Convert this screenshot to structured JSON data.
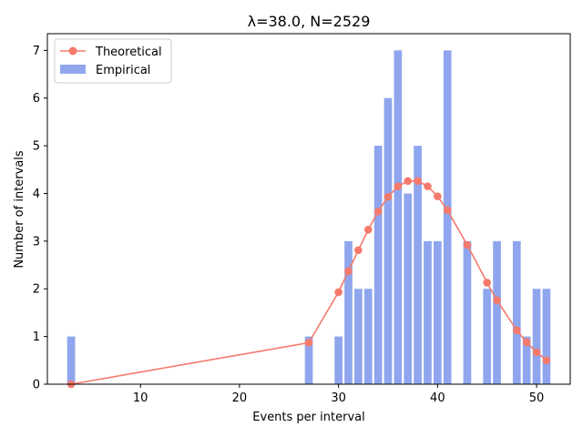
{
  "chart_data": {
    "type": "bar",
    "title": "λ=38.0, N=2529",
    "xlabel": "Events per interval",
    "ylabel": "Number of intervals",
    "xlim": [
      0.6,
      53.4
    ],
    "ylim": [
      0,
      7.35
    ],
    "xticks": [
      10,
      20,
      30,
      40,
      50
    ],
    "yticks": [
      0,
      1,
      2,
      3,
      4,
      5,
      6,
      7
    ],
    "legend_position": "top-left",
    "colors": {
      "empirical": "#8fa6ee",
      "theoretical": "#f47a6c"
    },
    "series": [
      {
        "name": "Empirical",
        "kind": "bar",
        "x": [
          3,
          27,
          30,
          31,
          32,
          33,
          34,
          35,
          36,
          37,
          38,
          39,
          40,
          41,
          43,
          45,
          46,
          48,
          49,
          50,
          51
        ],
        "values": [
          1,
          1,
          1,
          3,
          2,
          2,
          5,
          6,
          7,
          4,
          5,
          3,
          3,
          7,
          3,
          2,
          3,
          3,
          1,
          2,
          2
        ]
      },
      {
        "name": "Theoretical",
        "kind": "line",
        "x": [
          3,
          27,
          30,
          31,
          32,
          33,
          34,
          35,
          36,
          37,
          38,
          39,
          40,
          41,
          43,
          45,
          46,
          48,
          49,
          50,
          51
        ],
        "values": [
          0.0,
          0.87,
          1.93,
          2.37,
          2.81,
          3.24,
          3.62,
          3.93,
          4.15,
          4.26,
          4.26,
          4.15,
          3.94,
          3.65,
          2.92,
          2.13,
          1.76,
          1.13,
          0.88,
          0.67,
          0.5
        ]
      }
    ]
  }
}
